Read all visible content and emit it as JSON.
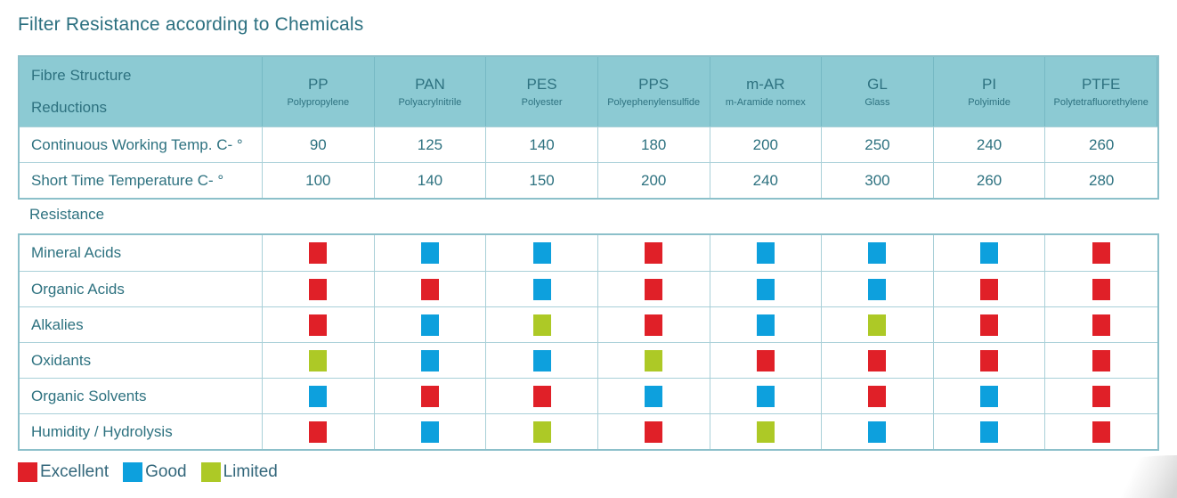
{
  "title": "Filter Resistance according to Chemicals",
  "table": {
    "header": {
      "label_line1": "Fibre Structure",
      "label_line2": "Reductions",
      "columns": [
        {
          "code": "PP",
          "name": "Polypropylene"
        },
        {
          "code": "PAN",
          "name": "Polyacrylnitrile"
        },
        {
          "code": "PES",
          "name": "Polyester"
        },
        {
          "code": "PPS",
          "name": "Polyephenylensulfide"
        },
        {
          "code": "m-AR",
          "name": "m-Aramide nomex"
        },
        {
          "code": "GL",
          "name": "Glass"
        },
        {
          "code": "PI",
          "name": "Polyimide"
        },
        {
          "code": "PTFE",
          "name": "Polytetrafluorethylene"
        }
      ]
    },
    "temperature_rows": [
      {
        "label": "Continuous Working Temp. C- °",
        "values": [
          "90",
          "125",
          "140",
          "180",
          "200",
          "250",
          "240",
          "260"
        ]
      },
      {
        "label": "Short Time Temperature C- °",
        "values": [
          "100",
          "140",
          "150",
          "200",
          "240",
          "300",
          "260",
          "280"
        ]
      }
    ],
    "resistance_section_label": "Resistance",
    "resistance_rows": [
      {
        "label": "Mineral Acids",
        "ratings": [
          "excellent",
          "good",
          "good",
          "excellent",
          "good",
          "good",
          "good",
          "excellent"
        ]
      },
      {
        "label": "Organic Acids",
        "ratings": [
          "excellent",
          "excellent",
          "good",
          "excellent",
          "good",
          "good",
          "excellent",
          "excellent"
        ]
      },
      {
        "label": "Alkalies",
        "ratings": [
          "excellent",
          "good",
          "limited",
          "excellent",
          "good",
          "limited",
          "excellent",
          "excellent"
        ]
      },
      {
        "label": "Oxidants",
        "ratings": [
          "limited",
          "good",
          "good",
          "limited",
          "excellent",
          "excellent",
          "excellent",
          "excellent"
        ]
      },
      {
        "label": "Organic Solvents",
        "ratings": [
          "good",
          "excellent",
          "excellent",
          "good",
          "good",
          "excellent",
          "good",
          "excellent"
        ]
      },
      {
        "label": "Humidity / Hydrolysis",
        "ratings": [
          "excellent",
          "good",
          "limited",
          "excellent",
          "limited",
          "good",
          "good",
          "excellent"
        ]
      }
    ]
  },
  "legend": [
    {
      "key": "excellent",
      "label": "Excellent",
      "color": "#e02028"
    },
    {
      "key": "good",
      "label": "Good",
      "color": "#0da0dd"
    },
    {
      "key": "limited",
      "label": "Limited",
      "color": "#adc926"
    }
  ],
  "colors": {
    "excellent": "#e02028",
    "good": "#0da0dd",
    "limited": "#adc926",
    "header_bg": "#8ccad3",
    "grid_line": "#a9d0d8",
    "outer_border": "#8cc0ca",
    "text": "#2e7280"
  },
  "chart_data": {
    "type": "table",
    "title": "Filter Resistance according to Chemicals",
    "columns": [
      "PP",
      "PAN",
      "PES",
      "PPS",
      "m-AR",
      "GL",
      "PI",
      "PTFE"
    ],
    "column_full_names": [
      "Polypropylene",
      "Polyacrylnitrile",
      "Polyester",
      "Polyephenylensulfide",
      "m-Aramide nomex",
      "Glass",
      "Polyimide",
      "Polytetrafluorethylene"
    ],
    "rows": [
      {
        "label": "Continuous Working Temp. C- °",
        "values": [
          90,
          125,
          140,
          180,
          200,
          250,
          240,
          260
        ]
      },
      {
        "label": "Short Time Temperature C- °",
        "values": [
          100,
          140,
          150,
          200,
          240,
          300,
          260,
          280
        ]
      },
      {
        "label": "Mineral Acids",
        "values": [
          "Excellent",
          "Good",
          "Good",
          "Excellent",
          "Good",
          "Good",
          "Good",
          "Excellent"
        ]
      },
      {
        "label": "Organic Acids",
        "values": [
          "Excellent",
          "Excellent",
          "Good",
          "Excellent",
          "Good",
          "Good",
          "Excellent",
          "Excellent"
        ]
      },
      {
        "label": "Alkalies",
        "values": [
          "Excellent",
          "Good",
          "Limited",
          "Excellent",
          "Good",
          "Limited",
          "Excellent",
          "Excellent"
        ]
      },
      {
        "label": "Oxidants",
        "values": [
          "Limited",
          "Good",
          "Good",
          "Limited",
          "Excellent",
          "Excellent",
          "Excellent",
          "Excellent"
        ]
      },
      {
        "label": "Organic Solvents",
        "values": [
          "Good",
          "Excellent",
          "Excellent",
          "Good",
          "Good",
          "Excellent",
          "Good",
          "Excellent"
        ]
      },
      {
        "label": "Humidity / Hydrolysis",
        "values": [
          "Excellent",
          "Good",
          "Limited",
          "Excellent",
          "Limited",
          "Good",
          "Good",
          "Excellent"
        ]
      }
    ],
    "legend": {
      "Excellent": "#e02028",
      "Good": "#0da0dd",
      "Limited": "#adc926"
    }
  }
}
